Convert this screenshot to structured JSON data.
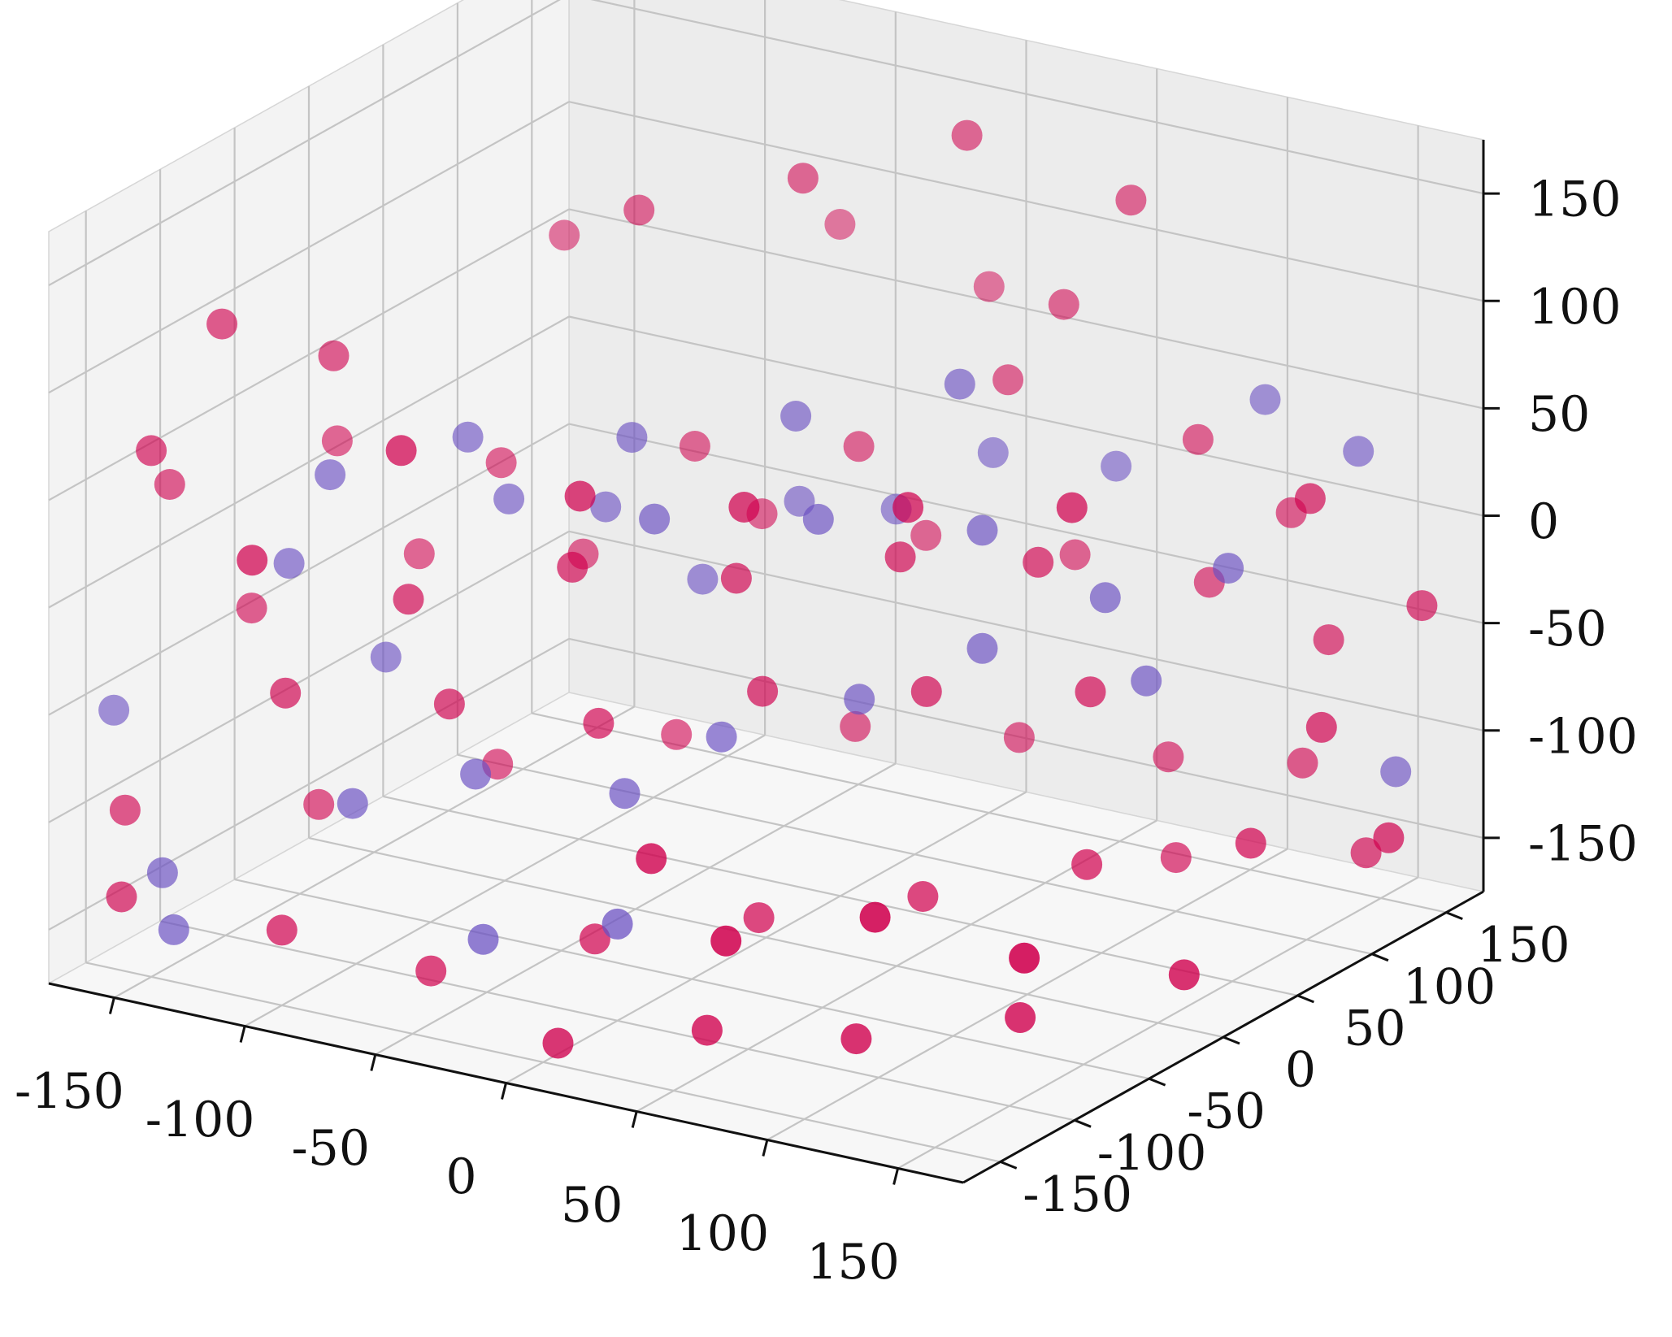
{
  "chart_data": {
    "type": "scatter",
    "projection": "3d",
    "title": "",
    "xlabel": "",
    "ylabel": "",
    "zlabel": "",
    "xlim": [
      -175,
      175
    ],
    "ylim": [
      -175,
      175
    ],
    "zlim": [
      -175,
      175
    ],
    "x_ticks": [
      -150,
      -100,
      -50,
      0,
      50,
      100,
      150
    ],
    "y_ticks": [
      -150,
      -100,
      -50,
      0,
      50,
      100,
      150
    ],
    "z_ticks": [
      -150,
      -100,
      -50,
      0,
      50,
      100,
      150
    ],
    "x_tick_labels": [
      "-150",
      "-100",
      "-50",
      "0",
      "50",
      "100",
      "150"
    ],
    "y_tick_labels": [
      "-150",
      "-100",
      "-50",
      "0",
      "50",
      "100",
      "150"
    ],
    "z_tick_labels": [
      "-150",
      "-100",
      "-50",
      "0",
      "50",
      "100",
      "150"
    ],
    "grid": true,
    "legend": "none",
    "series": [
      {
        "color": "#d0004e",
        "points": [
          [
            -140,
            -120,
            120
          ],
          [
            -120,
            -80,
            95
          ],
          [
            -60,
            20,
            140
          ],
          [
            -20,
            60,
            150
          ],
          [
            20,
            100,
            165
          ],
          [
            60,
            140,
            130
          ],
          [
            -100,
            40,
            110
          ],
          [
            -40,
            120,
            100
          ],
          [
            0,
            150,
            70
          ],
          [
            40,
            130,
            80
          ],
          [
            -150,
            -150,
            70
          ],
          [
            -160,
            -120,
            40
          ],
          [
            -130,
            -60,
            45
          ],
          [
            -90,
            -20,
            30
          ],
          [
            -50,
            40,
            25
          ],
          [
            -10,
            80,
            20
          ],
          [
            30,
            110,
            50
          ],
          [
            80,
            150,
            20
          ],
          [
            110,
            160,
            -10
          ],
          [
            140,
            120,
            20
          ],
          [
            -140,
            -100,
            -20
          ],
          [
            -110,
            -40,
            -10
          ],
          [
            -70,
            0,
            -15
          ],
          [
            -30,
            50,
            -5
          ],
          [
            10,
            90,
            -20
          ],
          [
            50,
            120,
            -30
          ],
          [
            90,
            140,
            -40
          ],
          [
            130,
            150,
            -60
          ],
          [
            160,
            160,
            -40
          ],
          [
            150,
            110,
            -80
          ],
          [
            -160,
            -150,
            -100
          ],
          [
            -120,
            -90,
            -110
          ],
          [
            -80,
            -40,
            -100
          ],
          [
            -40,
            10,
            -95
          ],
          [
            0,
            60,
            -100
          ],
          [
            40,
            100,
            -110
          ],
          [
            80,
            130,
            -120
          ],
          [
            120,
            150,
            -120
          ],
          [
            150,
            140,
            -150
          ],
          [
            100,
            100,
            -150
          ],
          [
            -60,
            -120,
            -160
          ],
          [
            -20,
            -80,
            -150
          ],
          [
            20,
            -40,
            -145
          ],
          [
            60,
            0,
            -140
          ],
          [
            100,
            40,
            -130
          ],
          [
            140,
            80,
            -125
          ],
          [
            170,
            120,
            -130
          ],
          [
            -100,
            -150,
            -140
          ],
          [
            0,
            -140,
            -170
          ],
          [
            40,
            -110,
            -165
          ],
          [
            80,
            -80,
            -170
          ],
          [
            120,
            -40,
            -165
          ],
          [
            160,
            0,
            -150
          ],
          [
            -30,
            -60,
            -60
          ],
          [
            10,
            -20,
            -50
          ],
          [
            50,
            20,
            -55
          ],
          [
            90,
            60,
            -60
          ],
          [
            -80,
            -100,
            0
          ],
          [
            -40,
            -60,
            10
          ],
          [
            0,
            -20,
            0
          ],
          [
            40,
            20,
            5
          ],
          [
            70,
            60,
            -5
          ],
          [
            -110,
            -130,
            -40
          ],
          [
            -70,
            -90,
            -50
          ],
          [
            -20,
            -90,
            60
          ],
          [
            20,
            -50,
            50
          ],
          [
            60,
            -10,
            45
          ],
          [
            100,
            30,
            40
          ],
          [
            -60,
            -140,
            90
          ],
          [
            -100,
            -170,
            40
          ],
          [
            30,
            -130,
            -80
          ],
          [
            70,
            -150,
            -100
          ],
          [
            110,
            -120,
            -90
          ],
          [
            150,
            -90,
            -110
          ],
          [
            -150,
            -170,
            -130
          ]
        ]
      },
      {
        "color": "#6a4fc2",
        "points": [
          [
            -170,
            -140,
            -60
          ],
          [
            -140,
            -160,
            -120
          ],
          [
            -120,
            -110,
            10
          ],
          [
            -100,
            -80,
            -40
          ],
          [
            -70,
            -50,
            30
          ],
          [
            -50,
            -20,
            20
          ],
          [
            -30,
            10,
            -20
          ],
          [
            -10,
            40,
            10
          ],
          [
            10,
            70,
            0
          ],
          [
            30,
            100,
            20
          ],
          [
            60,
            130,
            10
          ],
          [
            100,
            160,
            40
          ],
          [
            130,
            170,
            20
          ],
          [
            -90,
            -120,
            -90
          ],
          [
            -60,
            -90,
            -80
          ],
          [
            -20,
            -60,
            -90
          ],
          [
            0,
            -30,
            -70
          ],
          [
            30,
            10,
            -60
          ],
          [
            60,
            40,
            -40
          ],
          [
            90,
            70,
            -20
          ],
          [
            120,
            100,
            -10
          ],
          [
            -130,
            -170,
            -140
          ],
          [
            -40,
            -120,
            -140
          ],
          [
            0,
            -100,
            -130
          ],
          [
            150,
            160,
            -120
          ],
          [
            -80,
            -60,
            60
          ],
          [
            -40,
            -20,
            55
          ],
          [
            0,
            20,
            60
          ],
          [
            40,
            60,
            70
          ],
          [
            -110,
            -100,
            50
          ],
          [
            -20,
            -40,
            30
          ],
          [
            20,
            0,
            25
          ],
          [
            60,
            40,
            15
          ],
          [
            100,
            80,
            -60
          ]
        ]
      }
    ]
  }
}
